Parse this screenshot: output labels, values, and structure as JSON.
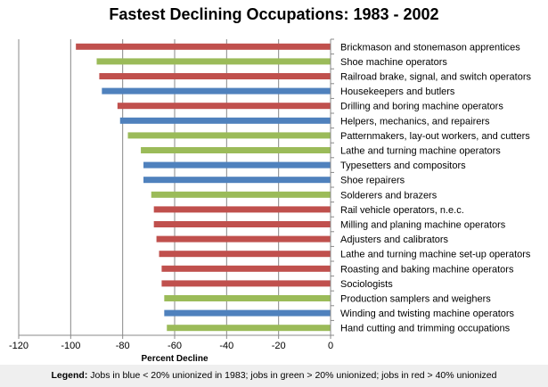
{
  "chart_data": {
    "type": "bar",
    "orientation": "horizontal",
    "title": "Fastest Declining Occupations: 1983 - 2002",
    "xlabel": "Percent Decline",
    "ylabel": "",
    "xlim": [
      -120,
      0
    ],
    "xticks": [
      -120,
      -100,
      -80,
      -60,
      -40,
      -20,
      0
    ],
    "grid": true,
    "colors": {
      "blue": "#4f81bd",
      "green": "#9bbb59",
      "red": "#c0504d"
    },
    "categories": [
      "Brickmason and stonemason apprentices",
      "Shoe machine operators",
      "Railroad brake, signal, and switch operators",
      "Housekeepers and butlers",
      "Drilling and boring machine operators",
      "Helpers, mechanics, and repairers",
      "Patternmakers, lay-out workers, and cutters",
      "Lathe and turning machine operators",
      "Typesetters and compositors",
      "Shoe repairers",
      "Solderers and brazers",
      "Rail vehicle operators, n.e.c.",
      "Milling and planing machine operators",
      "Adjusters and calibrators",
      "Lathe and turning machine set-up operators",
      "Roasting and baking machine operators",
      "Sociologists",
      "Production samplers and weighers",
      "Winding and twisting machine operators",
      "Hand cutting and trimming occupations"
    ],
    "values": [
      -98,
      -90,
      -89,
      -88,
      -82,
      -81,
      -78,
      -73,
      -72,
      -72,
      -69,
      -68,
      -68,
      -67,
      -66,
      -65,
      -65,
      -64,
      -64,
      -63
    ],
    "bar_colors": [
      "red",
      "green",
      "red",
      "blue",
      "red",
      "blue",
      "green",
      "green",
      "blue",
      "blue",
      "green",
      "red",
      "red",
      "red",
      "red",
      "red",
      "red",
      "green",
      "blue",
      "green"
    ]
  },
  "legend": {
    "label": "Legend:",
    "text": "Jobs in blue < 20% unionized in 1983; jobs in green > 20% unionized; jobs in red > 40% unionized"
  }
}
